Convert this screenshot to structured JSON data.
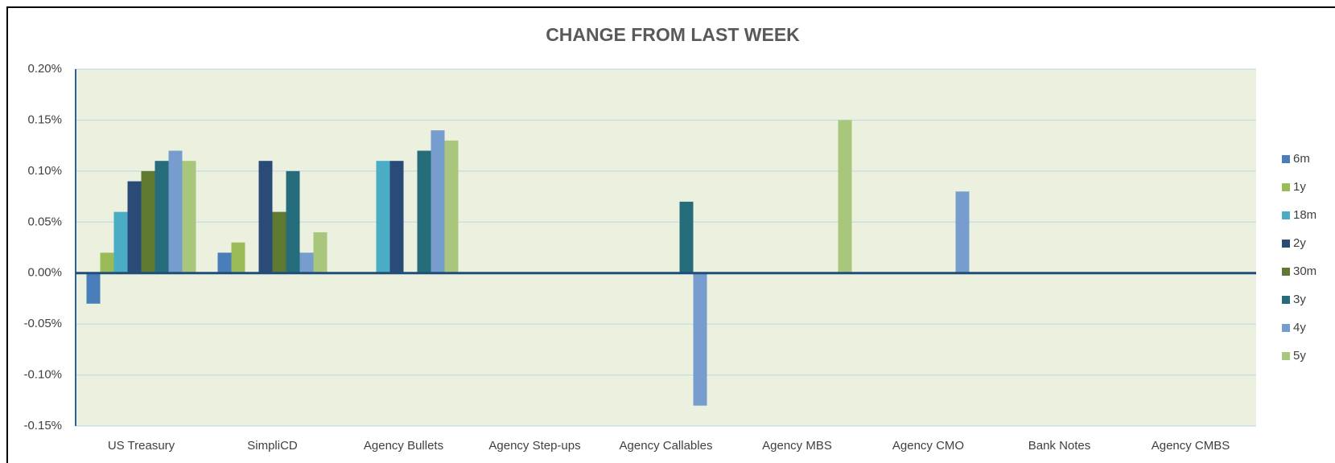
{
  "chart_data": {
    "type": "bar",
    "title": "CHANGE FROM LAST WEEK",
    "categories": [
      "US Treasury",
      "SimpliCD",
      "Agency Bullets",
      "Agency Step-ups",
      "Agency Callables",
      "Agency MBS",
      "Agency CMO",
      "Bank Notes",
      "Agency CMBS"
    ],
    "series": [
      {
        "name": "6m",
        "color": "#4a7ebb",
        "values": [
          -0.03,
          0.02,
          0,
          0,
          0,
          0,
          0,
          0,
          0
        ]
      },
      {
        "name": "1y",
        "color": "#9bbb59",
        "values": [
          0.02,
          0.03,
          0,
          0,
          0,
          0,
          0,
          0,
          0
        ]
      },
      {
        "name": "18m",
        "color": "#4bacc6",
        "values": [
          0.06,
          0,
          0.11,
          0,
          0,
          0,
          0,
          0,
          0
        ]
      },
      {
        "name": "2y",
        "color": "#2a4a78",
        "values": [
          0.09,
          0.11,
          0.11,
          0,
          0,
          0,
          0,
          0,
          0
        ]
      },
      {
        "name": "30m",
        "color": "#5f7a30",
        "values": [
          0.1,
          0.06,
          0,
          0,
          0,
          0,
          0,
          0,
          0
        ]
      },
      {
        "name": "3y",
        "color": "#256d7b",
        "values": [
          0.11,
          0.1,
          0.12,
          0,
          0.07,
          0,
          0,
          0,
          0
        ]
      },
      {
        "name": "4y",
        "color": "#779dcf",
        "values": [
          0.12,
          0.02,
          0.14,
          0,
          -0.13,
          0,
          0.08,
          0,
          0
        ]
      },
      {
        "name": "5y",
        "color": "#a9c77c",
        "values": [
          0.11,
          0.04,
          0.13,
          0,
          0,
          0.15,
          0,
          0,
          0
        ]
      }
    ],
    "ylim": [
      -0.15,
      0.2
    ],
    "yticks": [
      {
        "value": -0.15,
        "label": "-0.15%"
      },
      {
        "value": -0.1,
        "label": "-0.10%"
      },
      {
        "value": -0.05,
        "label": "-0.05%"
      },
      {
        "value": 0,
        "label": "0.00%"
      },
      {
        "value": 0.05,
        "label": "0.05%"
      },
      {
        "value": 0.1,
        "label": "0.10%"
      },
      {
        "value": 0.15,
        "label": "0.15%"
      },
      {
        "value": 0.2,
        "label": "0.20%"
      }
    ],
    "grid": true,
    "legend": "right"
  }
}
